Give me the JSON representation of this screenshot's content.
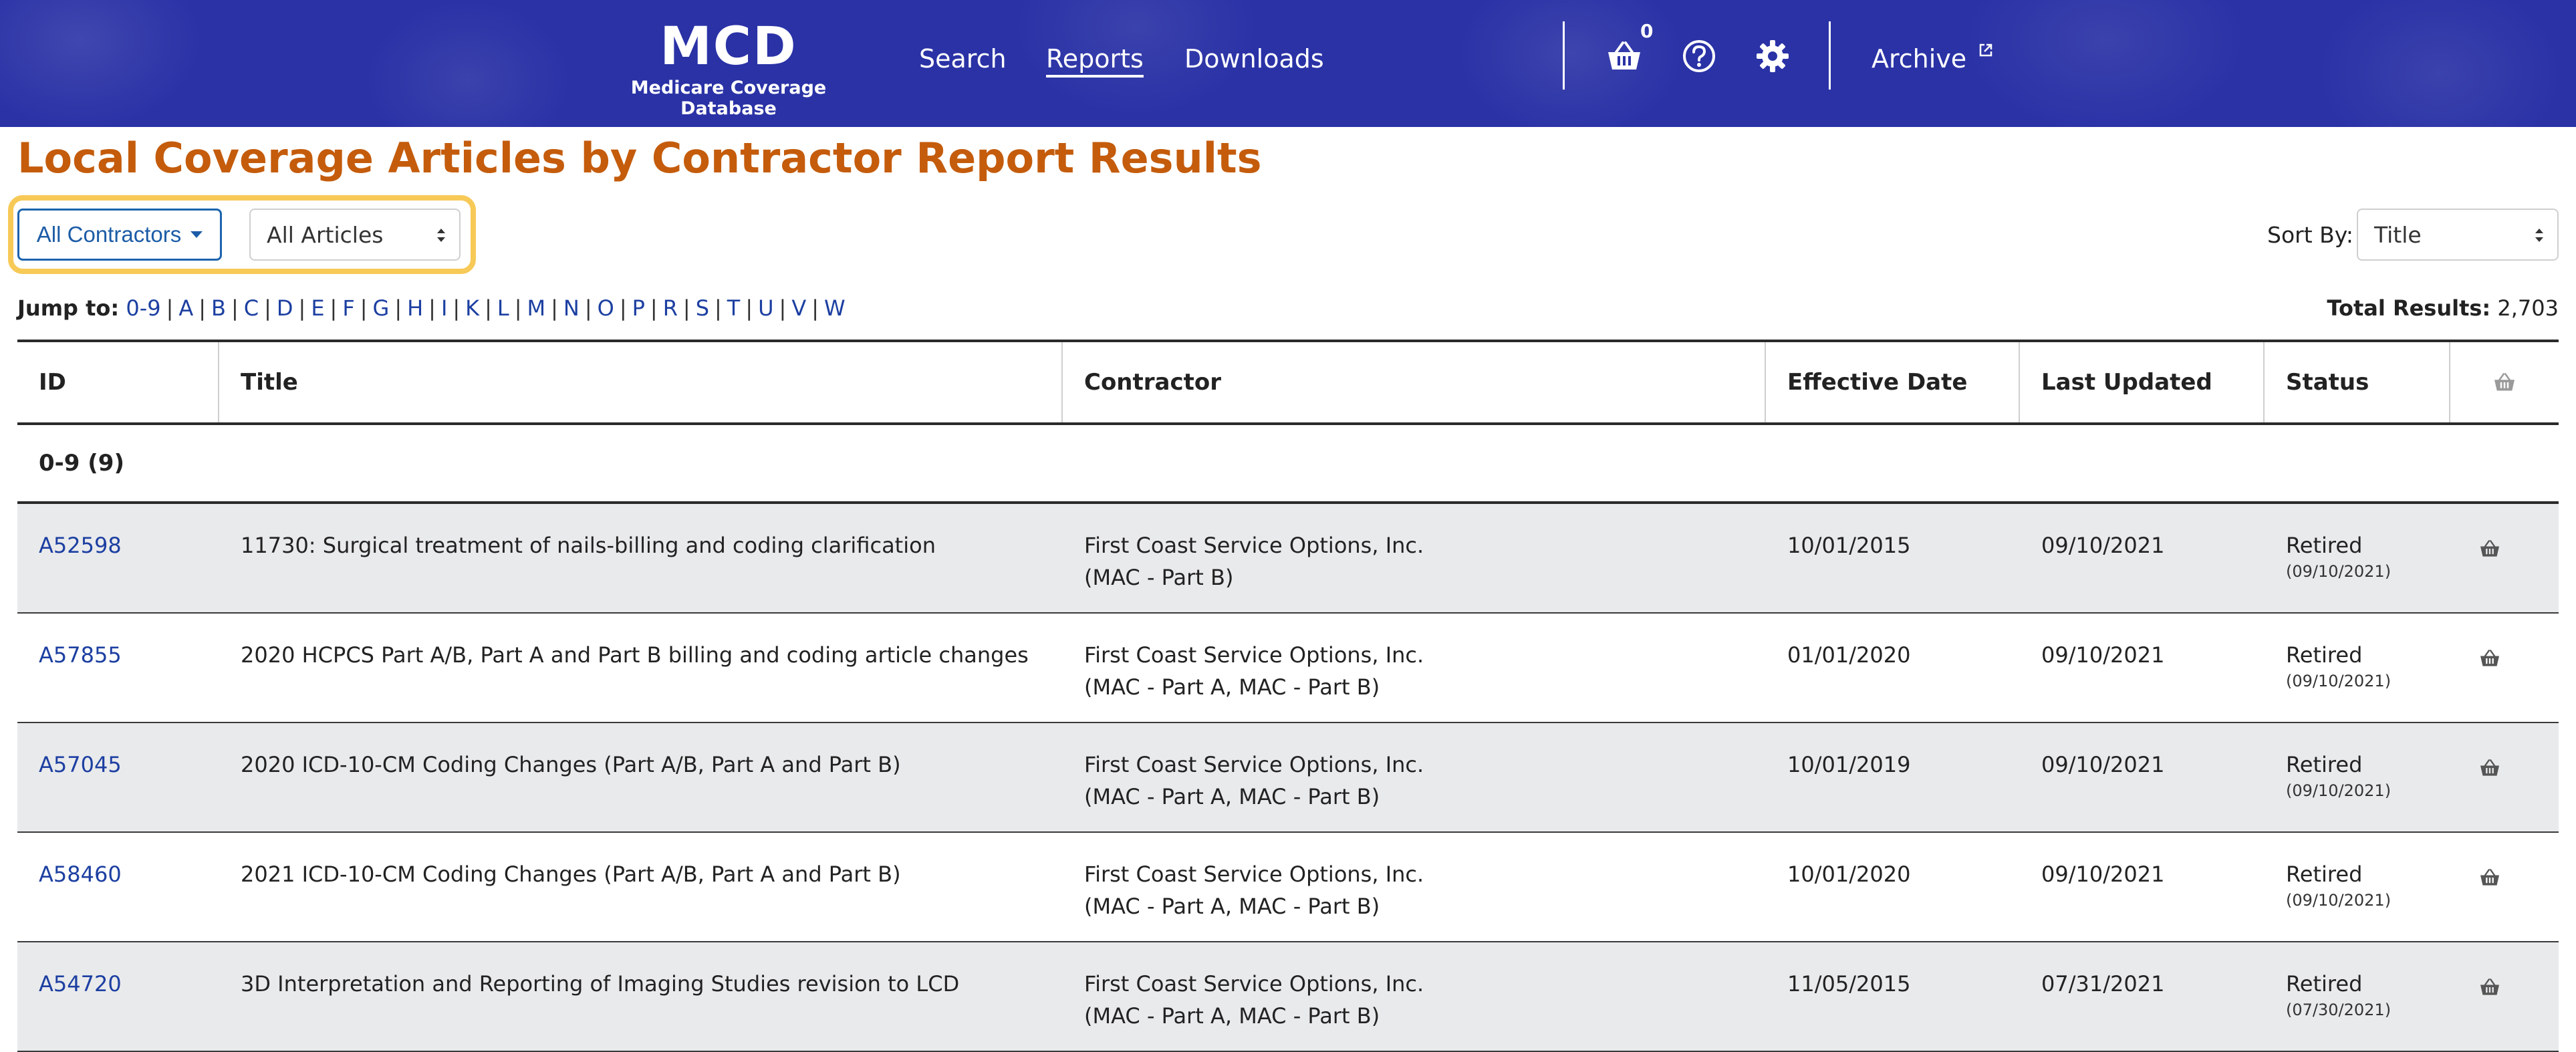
{
  "header": {
    "logo_title": "MCD",
    "logo_subtitle": "Medicare Coverage Database",
    "nav": {
      "search": "Search",
      "reports": "Reports",
      "downloads": "Downloads"
    },
    "cart_count": "0",
    "archive": "Archive",
    "icons": [
      "basket-icon",
      "help-icon",
      "gear-icon",
      "external-link-icon"
    ],
    "colors": {
      "background": "#2a32a6",
      "text": "#ffffff"
    }
  },
  "page": {
    "title": "Local Coverage Articles by Contractor Report Results",
    "title_color": "#c45c0c"
  },
  "filters": {
    "contractors": "All Contractors",
    "articles": "All Articles",
    "sort_label": "Sort By:",
    "sort_value": "Title",
    "highlight_color": "#f7c957"
  },
  "jump": {
    "label": "Jump to:",
    "letters": [
      "0-9",
      "A",
      "B",
      "C",
      "D",
      "E",
      "F",
      "G",
      "H",
      "I",
      "K",
      "L",
      "M",
      "N",
      "O",
      "P",
      "R",
      "S",
      "T",
      "U",
      "V",
      "W"
    ]
  },
  "total": {
    "label": "Total Results:",
    "value": "2,703"
  },
  "table": {
    "columns": [
      "ID",
      "Title",
      "Contractor",
      "Effective Date",
      "Last Updated",
      "Status"
    ],
    "group": "0-9 (9)",
    "rows": [
      {
        "id": "A52598",
        "title": "11730: Surgical treatment of nails-billing and coding clarification",
        "contractor": "First Coast Service Options, Inc.",
        "contractor_type": "(MAC - Part B)",
        "effective": "10/01/2015",
        "updated": "09/10/2021",
        "status": "Retired",
        "status_date": "(09/10/2021)"
      },
      {
        "id": "A57855",
        "title": "2020 HCPCS Part A/B, Part A and Part B billing and coding article changes",
        "contractor": "First Coast Service Options, Inc.",
        "contractor_type": "(MAC - Part A, MAC - Part B)",
        "effective": "01/01/2020",
        "updated": "09/10/2021",
        "status": "Retired",
        "status_date": "(09/10/2021)"
      },
      {
        "id": "A57045",
        "title": "2020 ICD-10-CM Coding Changes (Part A/B, Part A and Part B)",
        "contractor": "First Coast Service Options, Inc.",
        "contractor_type": "(MAC - Part A, MAC - Part B)",
        "effective": "10/01/2019",
        "updated": "09/10/2021",
        "status": "Retired",
        "status_date": "(09/10/2021)"
      },
      {
        "id": "A58460",
        "title": "2021 ICD-10-CM Coding Changes (Part A/B, Part A and Part B)",
        "contractor": "First Coast Service Options, Inc.",
        "contractor_type": "(MAC - Part A, MAC - Part B)",
        "effective": "10/01/2020",
        "updated": "09/10/2021",
        "status": "Retired",
        "status_date": "(09/10/2021)"
      },
      {
        "id": "A54720",
        "title": "3D Interpretation and Reporting of Imaging Studies revision to LCD",
        "contractor": "First Coast Service Options, Inc.",
        "contractor_type": "(MAC - Part A, MAC - Part B)",
        "effective": "11/05/2015",
        "updated": "07/31/2021",
        "status": "Retired",
        "status_date": "(07/30/2021)"
      }
    ]
  }
}
